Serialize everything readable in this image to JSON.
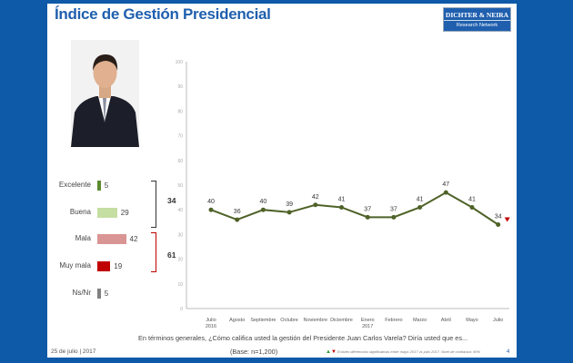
{
  "header": {
    "title": "Índice de Gestión Presidencial",
    "logo_line1": "DICHTER & NEIRA",
    "logo_line2": "Research Network"
  },
  "ratings": [
    {
      "label": "Excelente",
      "value": 5,
      "color": "#5b8a2e"
    },
    {
      "label": "Buena",
      "value": 29,
      "color": "#c5dea2"
    },
    {
      "label": "Mala",
      "value": 42,
      "color": "#d99594"
    },
    {
      "label": "Muy mala",
      "value": 19,
      "color": "#c00000"
    },
    {
      "label": "Ns/Nr",
      "value": 5,
      "color": "#808080"
    }
  ],
  "totals": {
    "positive": "34",
    "negative": "61"
  },
  "chart_data": {
    "type": "line",
    "categories": [
      "Julio\n2016",
      "Agosto",
      "Septiembre",
      "Octubre",
      "Noviembre",
      "Diciembre",
      "Enero\n2017",
      "Febrero",
      "Marzo",
      "Abril",
      "Mayo",
      "Julio"
    ],
    "values": [
      40,
      36,
      40,
      39,
      42,
      41,
      37,
      37,
      41,
      47,
      41,
      34
    ],
    "ylim": [
      0,
      100
    ],
    "yticks": [
      0,
      10,
      20,
      30,
      40,
      50,
      60,
      70,
      80,
      90,
      100
    ],
    "line_color": "#4f6228",
    "marker": "down-triangle-red on last point"
  },
  "footer": {
    "question": "En términos generales, ¿Cómo califica usted la gestión del Presidente Juan Carlos Varela? Diría usted que es...",
    "base": "(Base: n=1,200)",
    "date": "25 de julio | 2017",
    "note": "Existen diferencias significativas entre mayo 2017 vs julio 2017. Nivel de confianza: 95%",
    "page": "4"
  }
}
